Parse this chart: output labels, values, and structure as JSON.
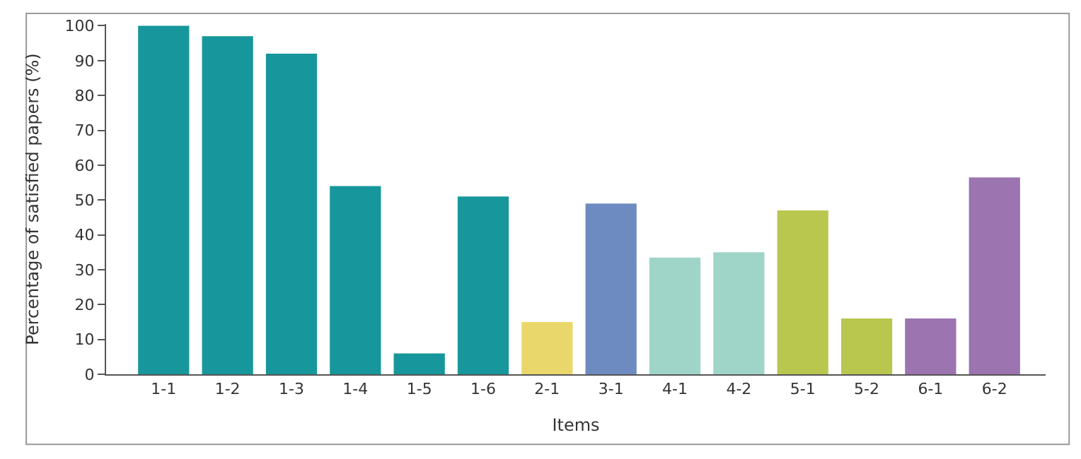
{
  "chart_data": {
    "type": "bar",
    "xlabel": "Items",
    "ylabel": "Percentage of satisfied papers (%)",
    "categories": [
      "1-1",
      "1-2",
      "1-3",
      "1-4",
      "1-5",
      "1-6",
      "2-1",
      "3-1",
      "4-1",
      "4-2",
      "5-1",
      "5-2",
      "6-1",
      "6-2"
    ],
    "values": [
      100,
      97,
      92,
      54,
      6,
      51,
      15,
      49,
      33.5,
      35,
      47,
      16,
      16,
      56.5
    ],
    "colors": [
      "#17979b",
      "#17979b",
      "#17979b",
      "#17979b",
      "#17979b",
      "#17979b",
      "#ead76b",
      "#6d8bc0",
      "#9fd5c8",
      "#9fd5c8",
      "#b9c74f",
      "#b9c74f",
      "#9b74b0",
      "#9b74b0"
    ],
    "ylim": [
      0,
      100
    ],
    "yticks": [
      0,
      10,
      20,
      30,
      40,
      50,
      60,
      70,
      80,
      90,
      100
    ]
  }
}
